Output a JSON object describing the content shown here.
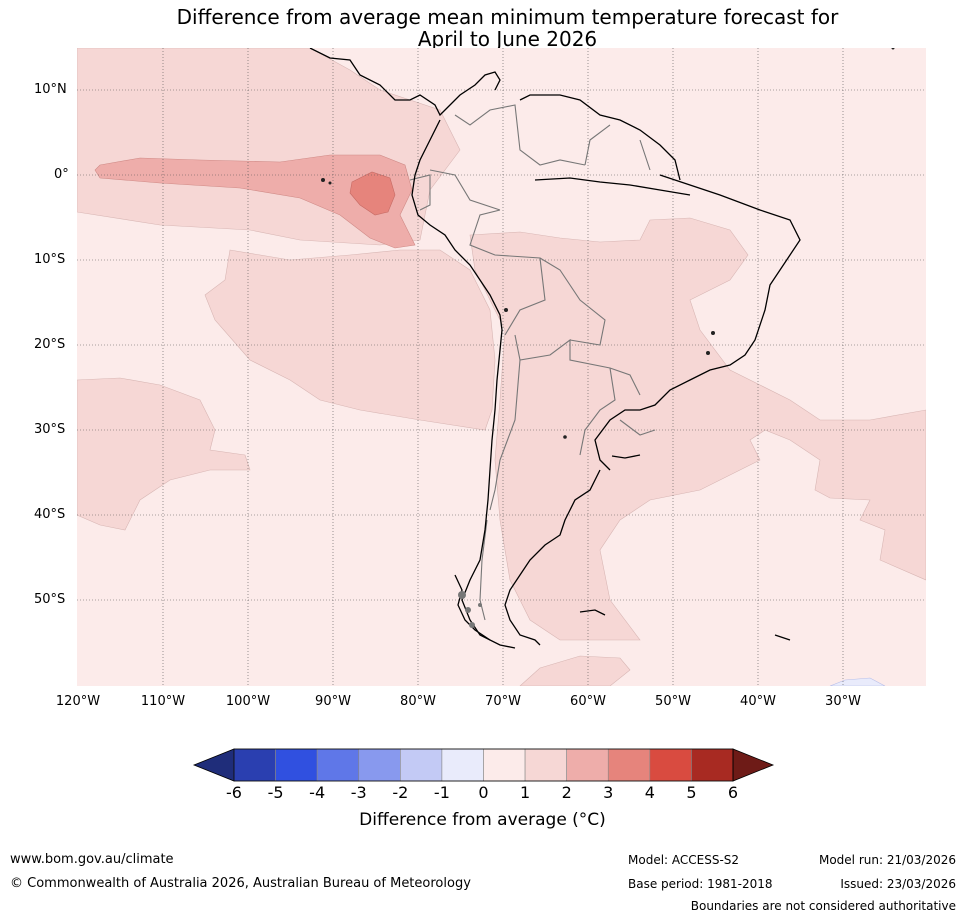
{
  "title_line1": "Difference from average mean minimum temperature forecast for",
  "title_line2": "April to June 2026",
  "lat_labels": [
    "10°N",
    "0°",
    "10°S",
    "20°S",
    "30°S",
    "40°S",
    "50°S"
  ],
  "lon_labels": [
    "120°W",
    "110°W",
    "100°W",
    "90°W",
    "80°W",
    "70°W",
    "60°W",
    "50°W",
    "40°W",
    "30°W"
  ],
  "colorbar": {
    "ticks": [
      "-6",
      "-5",
      "-4",
      "-3",
      "-2",
      "-1",
      "0",
      "1",
      "2",
      "3",
      "4",
      "5",
      "6"
    ],
    "label": "Difference from average (°C)",
    "colors": [
      "#1f2d7a",
      "#2a3fb0",
      "#3050e0",
      "#5f77e8",
      "#8899ee",
      "#c3caf5",
      "#e9ebfb",
      "#fcebea",
      "#f6d7d5",
      "#eeadaa",
      "#e6847c",
      "#d94b40",
      "#a82a22",
      "#6e1b17"
    ]
  },
  "footer": {
    "website": "www.bom.gov.au/climate",
    "copyright": "© Commonwealth of Australia 2026, Australian Bureau of Meteorology",
    "model": "Model: ACCESS-S2",
    "base_period": "Base period: 1981-2018",
    "model_run": "Model run: 21/03/2026",
    "issued": "Issued: 23/03/2026",
    "disclaimer": "Boundaries are not considered authoritative"
  }
}
